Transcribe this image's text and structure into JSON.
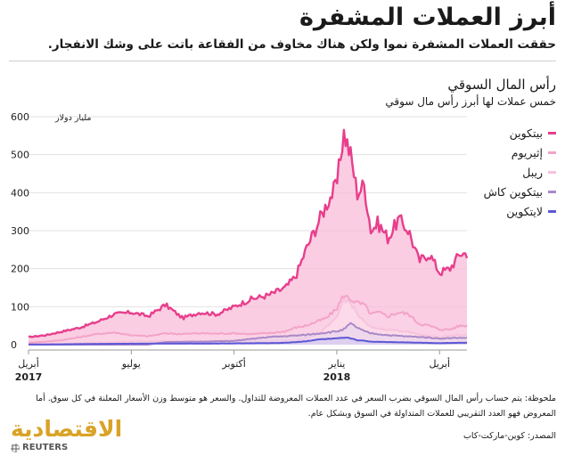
{
  "header": {
    "title": "أبرز العملات المشفرة",
    "subtitle": "حققت العملات المشفرة نموا ولكن هناك مخاوف من الفقاعة باتت على وشك الانفجار."
  },
  "chart_data": {
    "type": "area",
    "title": "رأس المال السوقي",
    "subtitle": "خمس عملات لها أبرز رأس مال سوقي",
    "ylabel": "مليار دولار",
    "ylim": [
      0,
      600
    ],
    "yticks": [
      0,
      100,
      200,
      300,
      400,
      500,
      600
    ],
    "x_ticks": [
      {
        "month": "أبريل",
        "year": "2017",
        "t": 0
      },
      {
        "month": "يوليو",
        "year": "",
        "t": 3
      },
      {
        "month": "أكتوبر",
        "year": "",
        "t": 6
      },
      {
        "month": "يناير",
        "year": "2018",
        "t": 9
      },
      {
        "month": "أبريل",
        "year": "",
        "t": 12
      }
    ],
    "x_range": [
      0,
      12.8
    ],
    "grid": true,
    "legend_position": "top-right",
    "series": [
      {
        "name": "بيتكوين",
        "color": "#e83e8c",
        "t": [
          0,
          0.5,
          1,
          1.5,
          2,
          2.5,
          3,
          3.5,
          4,
          4.5,
          5,
          5.5,
          6,
          6.5,
          7,
          7.5,
          7.8,
          8.1,
          8.4,
          8.7,
          9,
          9.2,
          9.4,
          9.6,
          9.8,
          10,
          10.2,
          10.5,
          10.8,
          11.1,
          11.4,
          11.7,
          12,
          12.3,
          12.6,
          12.8
        ],
        "values": [
          20,
          25,
          35,
          45,
          60,
          80,
          85,
          75,
          105,
          70,
          85,
          80,
          100,
          120,
          130,
          150,
          180,
          250,
          310,
          370,
          420,
          560,
          500,
          400,
          420,
          300,
          320,
          280,
          330,
          300,
          220,
          240,
          190,
          200,
          240,
          240
        ]
      },
      {
        "name": "إثيريوم",
        "color": "#f4a3c8",
        "t": [
          0,
          0.5,
          1,
          1.5,
          2,
          2.5,
          3,
          3.5,
          4,
          4.5,
          5,
          5.5,
          6,
          6.5,
          7,
          7.5,
          7.8,
          8.1,
          8.4,
          8.7,
          9,
          9.2,
          9.4,
          9.6,
          9.8,
          10,
          10.2,
          10.5,
          10.8,
          11.1,
          11.4,
          11.7,
          12,
          12.3,
          12.6,
          12.8
        ],
        "values": [
          5,
          8,
          12,
          20,
          28,
          32,
          25,
          22,
          30,
          28,
          30,
          29,
          30,
          28,
          30,
          35,
          45,
          50,
          60,
          70,
          95,
          130,
          120,
          110,
          105,
          80,
          85,
          75,
          85,
          80,
          55,
          50,
          40,
          40,
          50,
          50
        ]
      },
      {
        "name": "ريبل",
        "color": "#f7c2dc",
        "t": [
          0,
          1,
          2,
          3,
          4,
          5,
          6,
          7,
          7.5,
          8,
          8.5,
          9,
          9.2,
          9.4,
          9.6,
          9.8,
          10,
          10.5,
          11,
          11.5,
          12,
          12.5,
          12.8
        ],
        "values": [
          1,
          2,
          5,
          8,
          9,
          8,
          9,
          9,
          10,
          13,
          30,
          70,
          120,
          110,
          80,
          60,
          45,
          40,
          35,
          25,
          20,
          25,
          25
        ]
      },
      {
        "name": "بيتكوين كاش",
        "color": "#a989c8",
        "t": [
          0,
          3.5,
          4,
          5,
          6,
          7,
          8,
          8.5,
          9,
          9.2,
          9.4,
          9.6,
          9.8,
          10,
          10.5,
          11,
          11.5,
          12,
          12.5,
          12.8
        ],
        "values": [
          0,
          0,
          7,
          8,
          10,
          20,
          25,
          30,
          35,
          40,
          55,
          45,
          35,
          30,
          25,
          22,
          20,
          16,
          18,
          18
        ]
      },
      {
        "name": "لايتكوين",
        "color": "#5c57d6",
        "t": [
          0,
          1,
          2,
          3,
          4,
          5,
          6,
          7,
          7.5,
          8,
          8.5,
          9,
          9.2,
          9.4,
          9.6,
          9.8,
          10,
          10.5,
          11,
          11.5,
          12,
          12.5,
          12.8
        ],
        "values": [
          0.5,
          1,
          2,
          2.5,
          3,
          3,
          3.5,
          4,
          5,
          8,
          14,
          16,
          18,
          17,
          12,
          10,
          8,
          7,
          6,
          5,
          4,
          5,
          5
        ]
      }
    ]
  },
  "note": "ملحوظة: يتم حساب رأس المال السوقي بضرب السعر في عدد العملات المعروضة للتداول. والسعر هو متوسط وزن الأسعار المعلنة في كل سوق. أما المعروض فهو العدد التقريبي للعملات المتداولة في السوق وبشكل عام.",
  "source": "المصدر: كوين-ماركت-كاب",
  "brand": {
    "publisher": "الاقتصادية",
    "agency": "REUTERS"
  }
}
